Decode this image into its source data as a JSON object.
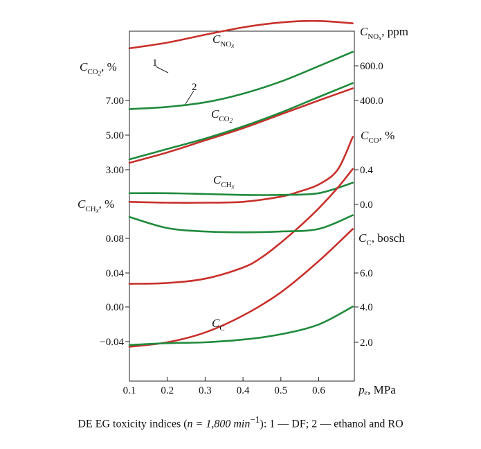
{
  "caption": {
    "prefix": "DE EG toxicity indices (",
    "n_value": "n = 1,800 min",
    "exponent": "−1",
    "suffix": "): 1 — DF; 2 — ethanol and RO"
  },
  "chart_data": {
    "type": "line",
    "x_axis": {
      "ticks": [
        "0.1",
        "0.2",
        "0.3",
        "0.4",
        "0.5",
        "0.6"
      ],
      "label": "pₑ",
      "unit": "MPa",
      "range": [
        0.1,
        0.69
      ]
    },
    "left_axis_groups": [
      {
        "label_main": "C",
        "label_sub": "CO",
        "label_sub2": "2",
        "label_unit": ", %",
        "ticks": [
          "3.00",
          "5.00",
          "7.00"
        ]
      },
      {
        "label_main": "C",
        "label_sub": "CH",
        "label_sub2": "x",
        "label_unit": ", %",
        "ticks": [
          "-0.04",
          "0.00",
          "0.04",
          "0.08"
        ]
      }
    ],
    "right_axis_groups": [
      {
        "label_main": "C",
        "label_sub": "NO",
        "label_sub2": "x",
        "label_unit": ", ppm",
        "ticks": [
          "400.0",
          "600.0"
        ]
      },
      {
        "label_main": "C",
        "label_sub": "CO",
        "label_sub2": "",
        "label_unit": ", %",
        "ticks": [
          "0.0",
          "0.4"
        ]
      },
      {
        "label_main": "C",
        "label_sub": "C",
        "label_sub2": "",
        "label_unit": ", bosch",
        "ticks": [
          "2.0",
          "4.0",
          "6.0"
        ]
      }
    ],
    "series_labels": {
      "nox": {
        "main": "C",
        "sub": "NO",
        "sub2": "x"
      },
      "co2": {
        "main": "C",
        "sub": "CO",
        "sub2": "2"
      },
      "chx": {
        "main": "C",
        "sub": "CH",
        "sub2": "x"
      },
      "cc": {
        "main": "C",
        "sub": "C",
        "sub2": ""
      }
    },
    "line_markers": [
      "1",
      "2"
    ],
    "colors": {
      "series_1": "#c8302b",
      "series_2": "#1f8a3c"
    },
    "series": [
      {
        "name": "1",
        "quantity": "CNOx",
        "axis": "CNOx, ppm",
        "x": [
          0.1,
          0.2,
          0.3,
          0.4,
          0.5,
          0.6,
          0.69
        ],
        "values": [
          684,
          715,
          758,
          798,
          825,
          833,
          820
        ]
      },
      {
        "name": "2",
        "quantity": "CNOx",
        "axis": "CNOx, ppm",
        "x": [
          0.1,
          0.2,
          0.3,
          0.4,
          0.5,
          0.6,
          0.69
        ],
        "values": [
          353,
          365,
          390,
          437,
          503,
          587,
          665
        ]
      },
      {
        "name": "1",
        "quantity": "CCO2",
        "axis": "CCO2, %",
        "x": [
          0.1,
          0.2,
          0.3,
          0.4,
          0.5,
          0.6,
          0.69
        ],
        "values": [
          3.4,
          4.0,
          4.7,
          5.4,
          6.2,
          7.0,
          7.7
        ]
      },
      {
        "name": "2",
        "quantity": "CCO2",
        "axis": "CCO2, %",
        "x": [
          0.1,
          0.2,
          0.3,
          0.4,
          0.5,
          0.6,
          0.69
        ],
        "values": [
          3.6,
          4.2,
          4.8,
          5.5,
          6.3,
          7.2,
          8.0
        ]
      },
      {
        "name": "1",
        "quantity": "CCO",
        "axis": "CCO, %",
        "x": [
          0.1,
          0.2,
          0.3,
          0.4,
          0.5,
          0.55,
          0.6,
          0.65,
          0.69
        ],
        "values": [
          0.03,
          0.02,
          0.02,
          0.03,
          0.09,
          0.15,
          0.23,
          0.4,
          0.78
        ]
      },
      {
        "name": "2",
        "quantity": "CCO",
        "axis": "CCO, %",
        "x": [
          0.1,
          0.2,
          0.3,
          0.4,
          0.5,
          0.6,
          0.69
        ],
        "values": [
          0.13,
          0.13,
          0.12,
          0.11,
          0.11,
          0.13,
          0.25
        ]
      },
      {
        "name": "1",
        "quantity": "CCHx",
        "axis": "CCHx, %",
        "x": [
          0.1,
          0.2,
          0.3,
          0.4,
          0.45,
          0.5,
          0.55,
          0.6,
          0.65,
          0.69
        ],
        "values": [
          0.027,
          0.028,
          0.033,
          0.046,
          0.058,
          0.075,
          0.094,
          0.115,
          0.139,
          0.161
        ]
      },
      {
        "name": "2",
        "quantity": "CCHx",
        "axis": "CCHx, %",
        "x": [
          0.1,
          0.2,
          0.3,
          0.4,
          0.5,
          0.6,
          0.69
        ],
        "values": [
          0.105,
          0.092,
          0.088,
          0.087,
          0.088,
          0.091,
          0.107
        ]
      },
      {
        "name": "1",
        "quantity": "CC",
        "axis": "CC, bosch",
        "x": [
          0.1,
          0.2,
          0.3,
          0.4,
          0.5,
          0.6,
          0.69
        ],
        "values": [
          1.75,
          2.0,
          2.55,
          3.5,
          4.8,
          6.55,
          8.35
        ]
      },
      {
        "name": "2",
        "quantity": "CC",
        "axis": "CC, bosch",
        "x": [
          0.1,
          0.2,
          0.3,
          0.4,
          0.5,
          0.6,
          0.69
        ],
        "values": [
          1.85,
          1.95,
          2.0,
          2.15,
          2.45,
          3.0,
          4.0
        ]
      }
    ]
  }
}
